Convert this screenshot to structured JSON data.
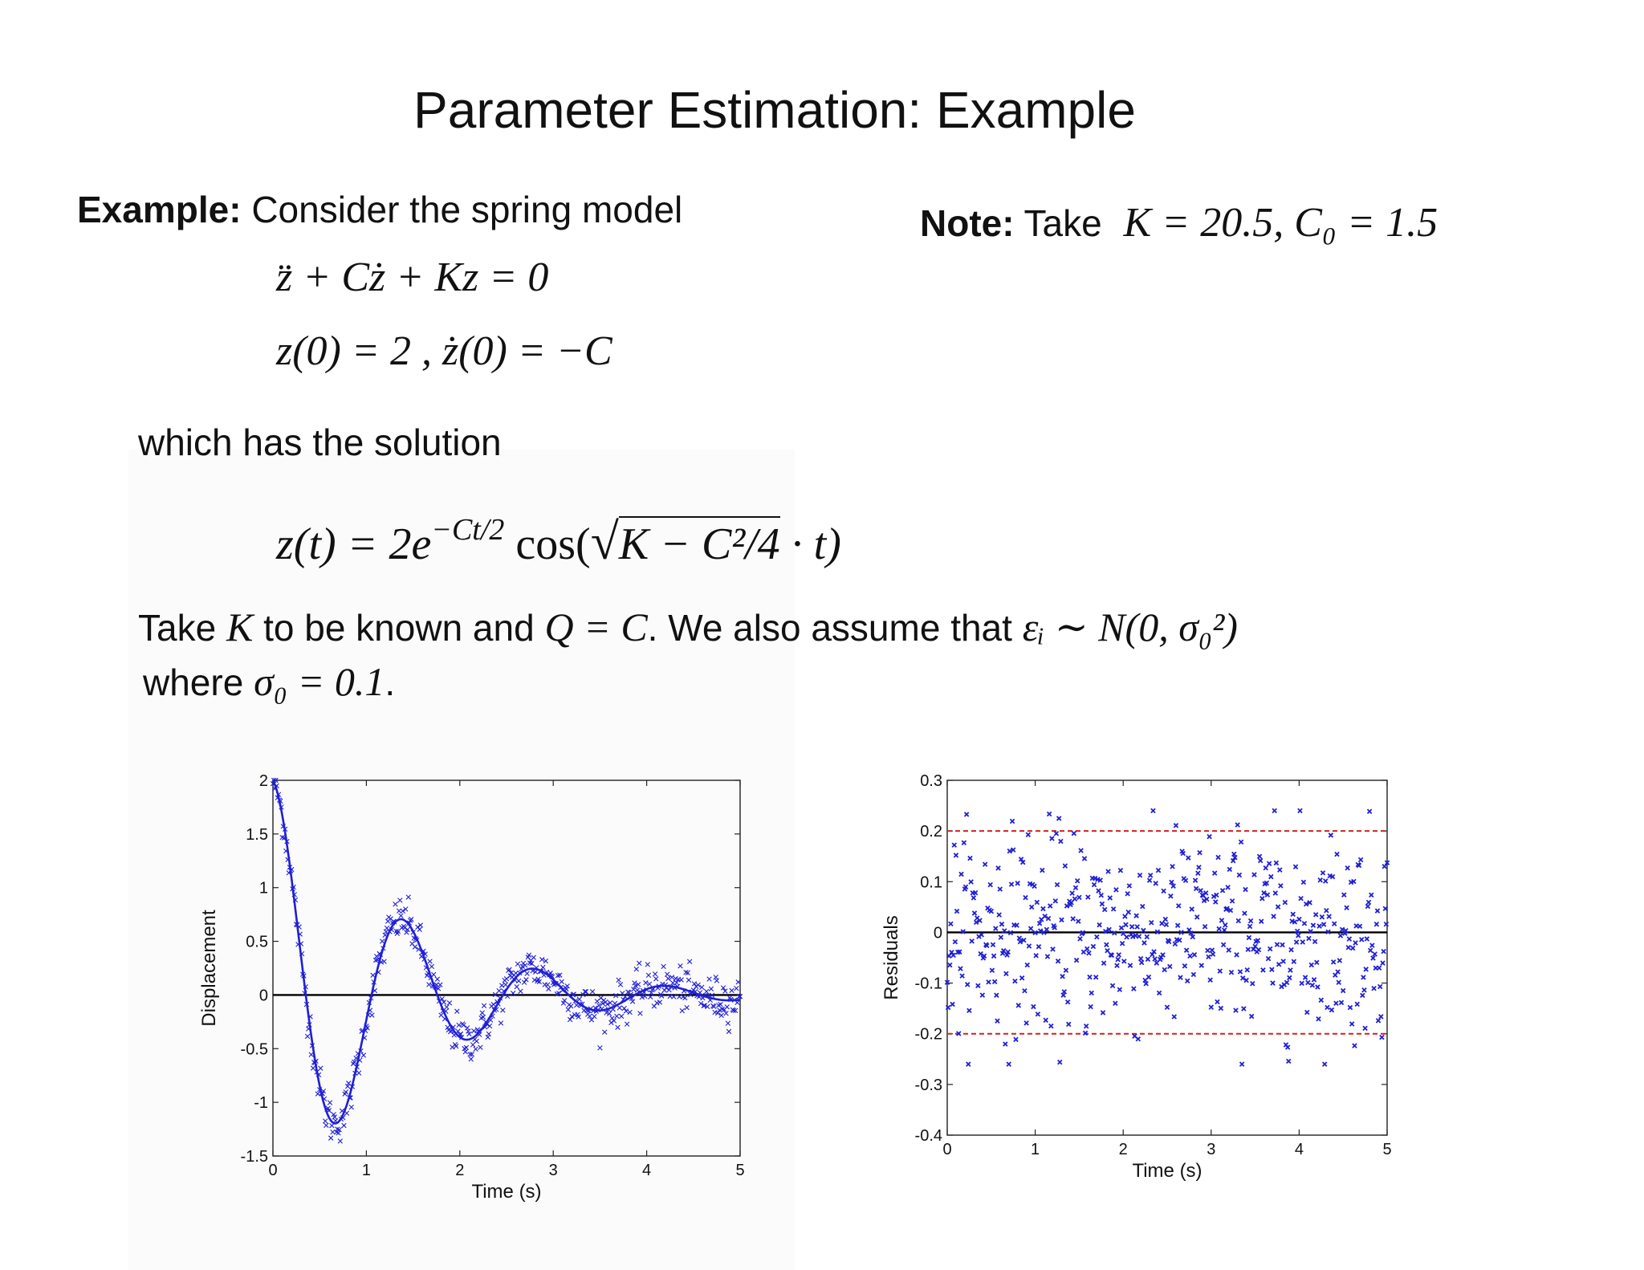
{
  "slide": {
    "title": "Parameter Estimation: Example",
    "example_label": "Example:",
    "example_text": "Consider the spring model",
    "note_label": "Note:",
    "note_text": "Take",
    "note_eq": "K = 20.5, C₀ = 1.5",
    "ode": "z̈ + Cż + Kz = 0",
    "ic": "z(0) = 2 ,  ż(0) = −C",
    "solution_intro": "which has the solution",
    "solution_lhs": "z(t) = 2e",
    "solution_exp": "−Ct/2",
    "solution_cos": "cos(",
    "solution_sqrt": "K − C²/4",
    "solution_end": "· t)",
    "assume_1": "Take",
    "assume_K": "K",
    "assume_2": "to be known and",
    "assume_Q": "Q = C",
    "assume_3": ". We also assume that",
    "assume_eps": "εᵢ ∼ N(0, σ₀²)",
    "where_1": "where",
    "where_eq": "σ₀ = 0.1",
    "where_end": "."
  },
  "chart_data": [
    {
      "type": "scatter",
      "title": "",
      "xlabel": "Time (s)",
      "ylabel": "Displacement",
      "xlim": [
        0,
        5
      ],
      "ylim": [
        -1.5,
        2
      ],
      "xticks": [
        "0",
        "1",
        "2",
        "3",
        "4",
        "5"
      ],
      "yticks": [
        "-1.5",
        "-1",
        "-0.5",
        "0",
        "0.5",
        "1",
        "1.5",
        "2"
      ],
      "model": {
        "K": 20.5,
        "C": 1.5,
        "z0": 2
      },
      "series": [
        {
          "kind": "data-points",
          "marker": "x",
          "color": "#1f1fd6",
          "n": 501
        },
        {
          "kind": "model-curve",
          "color": "#1f1fd6"
        }
      ],
      "zero_line": true,
      "grid": false
    },
    {
      "type": "scatter",
      "title": "",
      "xlabel": "Time (s)",
      "ylabel": "Residuals",
      "xlim": [
        0,
        5
      ],
      "ylim": [
        -0.4,
        0.3
      ],
      "xticks": [
        "0",
        "1",
        "2",
        "3",
        "4",
        "5"
      ],
      "yticks": [
        "-0.4",
        "-0.3",
        "-0.2",
        "-0.1",
        "0",
        "0.1",
        "0.2",
        "0.3"
      ],
      "sigma0": 0.1,
      "bounds": [
        -0.2,
        0.2
      ],
      "bound_color": "#d42020",
      "series": [
        {
          "kind": "residual-points",
          "marker": "x",
          "color": "#1f1fd6",
          "n": 501
        }
      ],
      "zero_line": true,
      "grid": false
    }
  ]
}
